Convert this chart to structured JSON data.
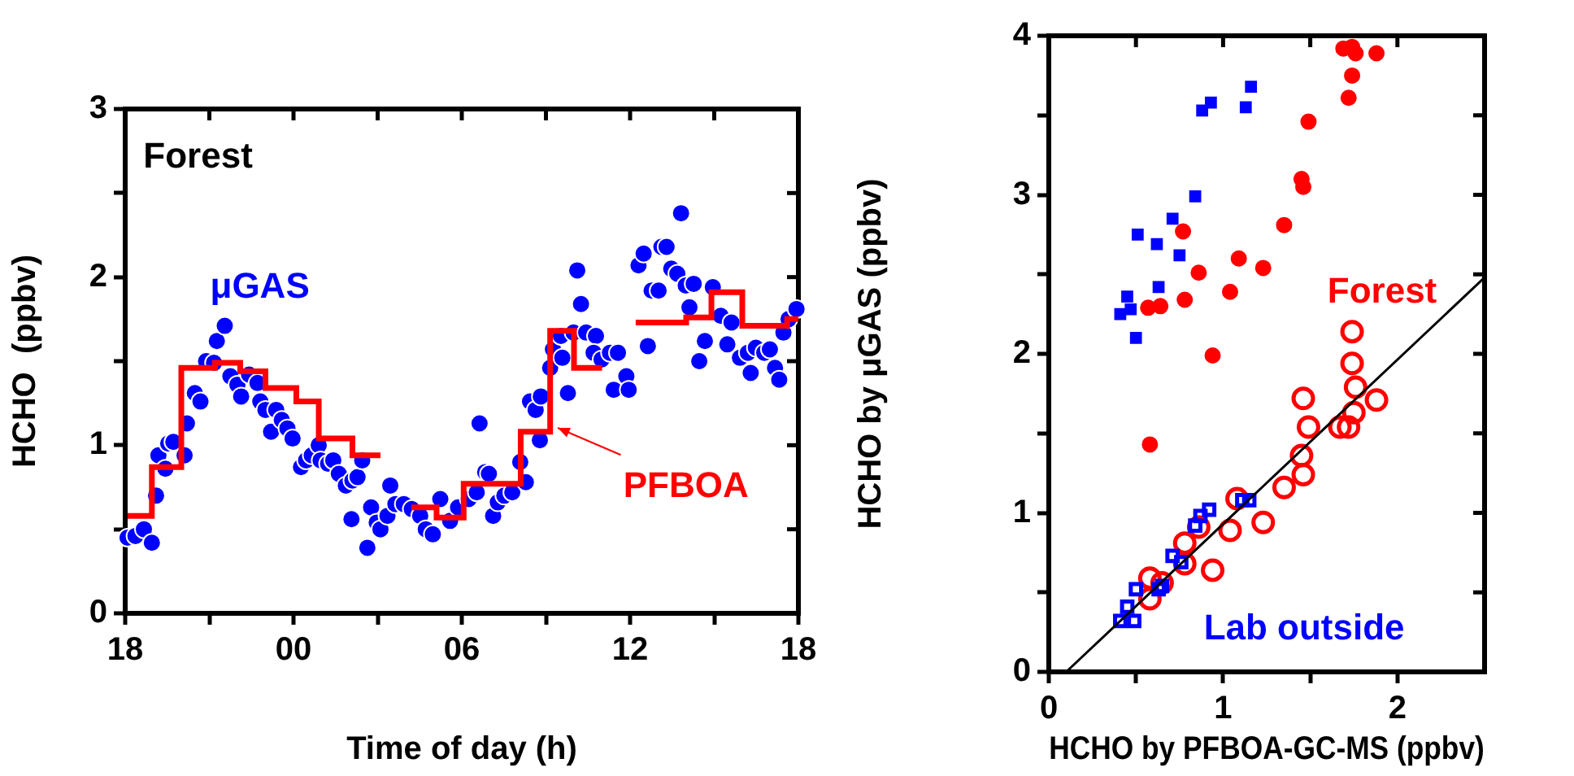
{
  "chart_data": [
    {
      "type": "scatter",
      "xlabel": "Time of day (h)",
      "ylabel": "HCHO  (ppbv)",
      "annotations": [
        "Forest",
        {
          "text": "PFBOA",
          "x": "2000-01-02T09:25",
          "y": 1.1
        }
      ],
      "xlim": [
        "2000-01-01T18:00",
        "2000-01-02T18:00"
      ],
      "xticks": [
        {
          "value": "2000-01-01T18:00",
          "label": "18"
        },
        {
          "value": "2000-01-01T21:00",
          "label": null
        },
        {
          "value": "2000-01-02T00:00",
          "label": "00"
        },
        {
          "value": "2000-01-02T03:00",
          "label": null
        },
        {
          "value": "2000-01-02T06:00",
          "label": "06"
        },
        {
          "value": "2000-01-02T09:00",
          "label": null
        },
        {
          "value": "2000-01-02T12:00",
          "label": "12"
        },
        {
          "value": "2000-01-02T15:00",
          "label": null
        },
        {
          "value": "2000-01-02T18:00",
          "label": "18"
        }
      ],
      "ylim": [
        0,
        3
      ],
      "yticks": [
        0,
        {
          "value": 0.5,
          "label": null
        },
        1,
        {
          "value": 1.5,
          "label": null
        },
        2,
        {
          "value": 2.5,
          "label": null
        },
        3
      ],
      "legend": false,
      "grid": false,
      "series": [
        {
          "name": "μGAS",
          "type": "scatter",
          "marker": "circle",
          "color": "#0000ff",
          "x": [
            "2000-01-01T18:05",
            "2000-01-01T18:22",
            "2000-01-01T18:40",
            "2000-01-01T18:57",
            "2000-01-01T19:06",
            "2000-01-01T19:11",
            "2000-01-01T19:26",
            "2000-01-01T19:32",
            "2000-01-01T19:43",
            "2000-01-01T20:07",
            "2000-01-01T20:12",
            "2000-01-01T20:29",
            "2000-01-01T20:41",
            "2000-01-01T20:53",
            "2000-01-01T21:10",
            "2000-01-01T21:16",
            "2000-01-01T21:33",
            "2000-01-01T21:45",
            "2000-01-01T22:00",
            "2000-01-01T22:08",
            "2000-01-01T22:25",
            "2000-01-01T22:43",
            "2000-01-01T22:49",
            "2000-01-01T23:00",
            "2000-01-01T23:12",
            "2000-01-01T23:23",
            "2000-01-01T23:35",
            "2000-01-01T23:47",
            "2000-01-01T23:58",
            "2000-01-02T00:16",
            "2000-01-02T00:27",
            "2000-01-02T00:39",
            "2000-01-02T00:54",
            "2000-01-02T00:58",
            "2000-01-02T01:14",
            "2000-01-02T01:25",
            "2000-01-02T01:37",
            "2000-01-02T01:52",
            "2000-01-02T02:06",
            "2000-01-02T02:17",
            "2000-01-02T02:27",
            "2000-01-02T02:04",
            "2000-01-02T02:38",
            "2000-01-02T02:46",
            "2000-01-02T02:58",
            "2000-01-02T03:06",
            "2000-01-02T03:21",
            "2000-01-02T03:27",
            "2000-01-02T03:38",
            "2000-01-02T03:56",
            "2000-01-02T04:13",
            "2000-01-02T04:31",
            "2000-01-02T04:43",
            "2000-01-02T04:58",
            "2000-01-02T05:14",
            "2000-01-02T05:35",
            "2000-01-02T05:52",
            "2000-01-02T06:15",
            "2000-01-02T06:32",
            "2000-01-02T06:38",
            "2000-01-02T06:50",
            "2000-01-02T06:58",
            "2000-01-02T07:07",
            "2000-01-02T07:17",
            "2000-01-02T07:31",
            "2000-01-02T07:48",
            "2000-01-02T08:05",
            "2000-01-02T08:17",
            "2000-01-02T08:26",
            "2000-01-02T08:38",
            "2000-01-02T08:49",
            "2000-01-02T08:47",
            "2000-01-02T09:09",
            "2000-01-02T09:15",
            "2000-01-02T09:35",
            "2000-01-02T09:47",
            "2000-01-02T09:32",
            "2000-01-02T09:59",
            "2000-01-02T10:07",
            "2000-01-02T10:15",
            "2000-01-02T10:26",
            "2000-01-02T10:47",
            "2000-01-02T10:42",
            "2000-01-02T10:59",
            "2000-01-02T11:17",
            "2000-01-02T11:34",
            "2000-01-02T11:25",
            "2000-01-02T11:52",
            "2000-01-02T11:57",
            "2000-01-02T12:18",
            "2000-01-02T12:29",
            "2000-01-02T12:38",
            "2000-01-02T12:46",
            "2000-01-02T13:01",
            "2000-01-02T13:07",
            "2000-01-02T13:18",
            "2000-01-02T13:28",
            "2000-01-02T13:41",
            "2000-01-02T13:49",
            "2000-01-02T13:59",
            "2000-01-02T14:07",
            "2000-01-02T14:16",
            "2000-01-02T14:28",
            "2000-01-02T14:40",
            "2000-01-02T14:57",
            "2000-01-02T15:14",
            "2000-01-02T15:28",
            "2000-01-02T15:37",
            "2000-01-02T15:55",
            "2000-01-02T16:12",
            "2000-01-02T16:18",
            "2000-01-02T16:29",
            "2000-01-02T16:47",
            "2000-01-02T16:59",
            "2000-01-02T17:10",
            "2000-01-02T17:19",
            "2000-01-02T17:28",
            "2000-01-02T17:39",
            "2000-01-02T17:56"
          ],
          "values": [
            0.45,
            0.46,
            0.5,
            0.42,
            0.7,
            0.94,
            0.86,
            1.01,
            1.02,
            0.94,
            1.13,
            1.31,
            1.26,
            1.5,
            1.49,
            1.62,
            1.71,
            1.41,
            1.36,
            1.29,
            1.42,
            1.37,
            1.26,
            1.21,
            1.08,
            1.21,
            1.15,
            1.1,
            1.04,
            0.87,
            0.91,
            0.94,
            1.0,
            0.91,
            0.89,
            0.91,
            0.83,
            0.76,
            0.79,
            0.81,
            0.91,
            0.56,
            0.39,
            0.63,
            0.54,
            0.5,
            0.58,
            0.76,
            0.65,
            0.65,
            0.62,
            0.58,
            0.5,
            0.47,
            0.68,
            0.55,
            0.63,
            0.68,
            0.72,
            1.13,
            0.84,
            0.83,
            0.58,
            0.66,
            0.7,
            0.72,
            0.9,
            0.78,
            1.26,
            1.21,
            1.29,
            1.03,
            1.46,
            1.57,
            1.52,
            1.31,
            1.65,
            1.67,
            2.04,
            1.84,
            1.67,
            1.65,
            1.55,
            1.51,
            1.55,
            1.55,
            1.33,
            1.41,
            1.33,
            2.07,
            2.14,
            1.59,
            1.92,
            1.92,
            2.18,
            2.18,
            2.05,
            2.02,
            2.38,
            1.95,
            1.82,
            1.96,
            1.5,
            1.62,
            1.94,
            1.77,
            1.6,
            1.73,
            1.52,
            1.55,
            1.43,
            1.58,
            1.55,
            1.57,
            1.46,
            1.39,
            1.67,
            1.75,
            1.81
          ]
        },
        {
          "type": "step",
          "marker": "none",
          "line_style": "solid",
          "color": "#ff0000",
          "x": [
            "2000-01-01T18:05",
            "2000-01-01T18:57",
            "2000-01-01T20:00",
            "2000-01-01T21:12",
            "2000-01-01T22:06",
            "2000-01-01T23:00",
            "2000-01-02T00:06",
            "2000-01-02T00:54",
            "2000-01-02T02:06",
            "2000-01-02T03:06",
            "2000-01-02T03:36",
            "2000-01-02T04:12",
            "2000-01-02T05:06",
            "2000-01-02T06:04",
            "2000-01-02T08:06",
            "2000-01-02T09:09",
            "2000-01-02T10:00",
            "2000-01-02T11:00",
            "2000-01-02T11:36",
            "2000-01-02T12:12",
            "2000-01-02T14:00",
            "2000-01-02T14:54",
            "2000-01-02T16:00",
            "2000-01-02T17:36",
            "2000-01-02T18:00"
          ],
          "values": [
            0.58,
            0.87,
            1.46,
            1.49,
            1.44,
            1.34,
            1.26,
            1.04,
            0.94,
            0.94,
            null,
            0.63,
            0.57,
            0.77,
            1.08,
            1.68,
            1.46,
            1.46,
            null,
            1.73,
            1.76,
            1.91,
            1.71,
            1.75,
            1.75
          ]
        }
      ]
    },
    {
      "type": "scatter",
      "xlabel": "HCHO by PFBOA-GC-MS (ppbv)",
      "ylabel": "HCHO by μGAS (ppbv)",
      "xlim": [
        0,
        2.5
      ],
      "xticks": [
        0,
        {
          "value": 0.5,
          "label": null
        },
        1,
        {
          "value": 1.5,
          "label": null
        },
        2
      ],
      "ylim": [
        0,
        4
      ],
      "yticks": [
        0,
        {
          "value": 0.5,
          "label": null
        },
        1,
        {
          "value": 1.5,
          "label": null
        },
        2,
        {
          "value": 2.5,
          "label": null
        },
        3,
        {
          "value": 3.5,
          "label": null
        },
        4
      ],
      "legend": false,
      "grid": false,
      "series": [
        {
          "type": "scatter",
          "marker": "square",
          "color": "#0000ff",
          "x": [
            0.41,
            0.45,
            0.47,
            0.5,
            0.51,
            0.62,
            0.63,
            0.71,
            0.75,
            0.84,
            0.88,
            0.93,
            1.13,
            1.16
          ],
          "values": [
            2.25,
            2.36,
            2.28,
            2.1,
            2.75,
            2.69,
            2.42,
            2.85,
            2.62,
            2.99,
            3.53,
            3.58,
            3.55,
            3.68
          ]
        },
        {
          "type": "scatter",
          "marker": "circle",
          "color": "#ff0000",
          "x": [
            0.57,
            0.64,
            0.77,
            0.78,
            0.86,
            0.94,
            1.04,
            1.09,
            1.23,
            1.35,
            1.45,
            1.46,
            1.49,
            1.69,
            1.74,
            1.76,
            1.88,
            1.74,
            1.72,
            0.58
          ],
          "values": [
            2.29,
            2.3,
            2.77,
            2.34,
            2.51,
            1.99,
            2.39,
            2.6,
            2.54,
            2.81,
            3.1,
            3.05,
            3.46,
            3.92,
            3.93,
            3.89,
            3.89,
            3.75,
            3.61,
            1.43
          ]
        },
        {
          "name": "Forest",
          "type": "scatter",
          "marker": "circle",
          "color": "#ff0000",
          "x": [
            1.74,
            1.74,
            1.76,
            1.88,
            1.75,
            1.67,
            1.72,
            1.46,
            1.49,
            1.45,
            1.46,
            1.35,
            1.23,
            1.04,
            1.08,
            0.94,
            0.78,
            0.78,
            0.58,
            0.58,
            0.65,
            0.86
          ],
          "values": [
            2.14,
            1.94,
            1.79,
            1.71,
            1.63,
            1.54,
            1.54,
            1.72,
            1.54,
            1.36,
            1.24,
            1.16,
            0.94,
            0.89,
            1.09,
            0.64,
            0.81,
            0.68,
            0.59,
            0.46,
            0.56,
            0.91
          ]
        },
        {
          "name": "Lab outside",
          "type": "scatter",
          "marker": "square",
          "color": "#0000ff",
          "x": [
            0.41,
            0.49,
            0.45,
            0.5,
            0.63,
            0.65,
            0.71,
            0.76,
            0.84,
            0.87,
            0.92,
            1.11,
            1.15
          ],
          "values": [
            0.32,
            0.32,
            0.41,
            0.52,
            0.52,
            0.54,
            0.73,
            0.69,
            0.92,
            0.98,
            1.02,
            1.08,
            1.08
          ]
        },
        {
          "type": "line",
          "marker": "none",
          "line_style": "solid",
          "color": "#000000",
          "x": [
            0.1,
            2.5
          ],
          "values": [
            0,
            2.48
          ]
        }
      ]
    }
  ]
}
